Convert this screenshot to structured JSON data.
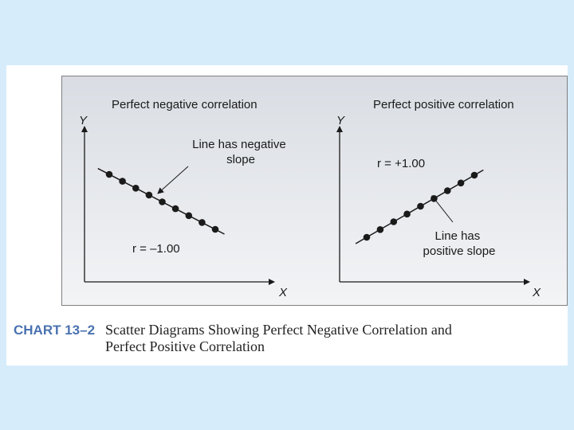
{
  "caption": {
    "label": "CHART 13–2",
    "line1": "Scatter Diagrams Showing Perfect Negative Correlation and",
    "line2": "Perfect Positive Correlation"
  },
  "chart_data": [
    {
      "type": "scatter",
      "title": "Perfect negative correlation",
      "xlabel": "X",
      "ylabel": "Y",
      "x": [
        1,
        2,
        3,
        4,
        5,
        6,
        7,
        8,
        9
      ],
      "y": [
        9,
        8,
        7,
        6,
        5,
        4,
        3,
        2,
        1
      ],
      "trendline": true,
      "annotations": [
        {
          "text_lines": [
            "Line has negative",
            "slope"
          ]
        },
        {
          "text_lines": [
            "r = –1.00"
          ]
        }
      ],
      "colors": {
        "points": "#1a1a1a",
        "line": "#1a1a1a"
      }
    },
    {
      "type": "scatter",
      "title": "Perfect positive correlation",
      "xlabel": "X",
      "ylabel": "Y",
      "x": [
        1,
        2,
        3,
        4,
        5,
        6,
        7,
        8,
        9
      ],
      "y": [
        1,
        2,
        3,
        4,
        5,
        6,
        7,
        8,
        9
      ],
      "trendline": true,
      "annotations": [
        {
          "text_lines": [
            "r = +1.00"
          ]
        },
        {
          "text_lines": [
            "Line has",
            "positive slope"
          ]
        }
      ],
      "colors": {
        "points": "#1a1a1a",
        "line": "#1a1a1a"
      }
    }
  ]
}
